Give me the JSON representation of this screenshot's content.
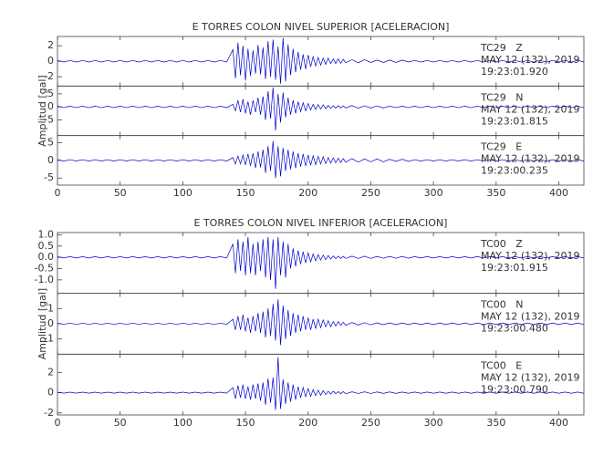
{
  "chart_data": [
    {
      "type": "line",
      "title": "E TORRES COLON NIVEL SUPERIOR [ACELERACION]",
      "ylabel": "Amplitud [gal]",
      "xlim": [
        0,
        420
      ],
      "xticks": [
        0,
        50,
        100,
        150,
        200,
        250,
        300,
        350,
        400
      ],
      "x": [
        0,
        5,
        10,
        15,
        20,
        25,
        30,
        35,
        40,
        45,
        50,
        55,
        60,
        65,
        70,
        75,
        80,
        85,
        90,
        95,
        100,
        105,
        110,
        115,
        120,
        125,
        130,
        135,
        140,
        142,
        144,
        146,
        148,
        150,
        152,
        154,
        156,
        158,
        160,
        162,
        164,
        166,
        168,
        170,
        172,
        174,
        176,
        178,
        180,
        182,
        184,
        186,
        188,
        190,
        192,
        194,
        196,
        198,
        200,
        202,
        204,
        206,
        208,
        210,
        212,
        214,
        216,
        218,
        220,
        222,
        224,
        226,
        228,
        230,
        235,
        240,
        245,
        250,
        255,
        260,
        265,
        270,
        275,
        280,
        285,
        290,
        295,
        300,
        305,
        310,
        315,
        320,
        325,
        330,
        335,
        340,
        345,
        350,
        355,
        360,
        365,
        370,
        375,
        380,
        385,
        390,
        395,
        400,
        405,
        410,
        415,
        420
      ],
      "panels": [
        {
          "label": [
            "TC29   Z",
            "MAY 12 (132), 2019",
            "19:23:01.920"
          ],
          "color": "#0000cc",
          "ylim": [
            -3.2,
            3.2
          ],
          "yticks": [
            2,
            0,
            -2
          ],
          "values": [
            0.1,
            -0.1,
            0.1,
            -0.1,
            0.1,
            -0.1,
            0.1,
            -0.1,
            0.1,
            -0.1,
            0.1,
            -0.1,
            0.1,
            -0.1,
            0.1,
            -0.1,
            0.1,
            -0.1,
            0.1,
            -0.1,
            0.1,
            -0.1,
            0.1,
            -0.1,
            0.1,
            -0.1,
            0.1,
            -0.1,
            1.5,
            -2.2,
            2.4,
            -1.8,
            2.0,
            -2.5,
            1.6,
            -1.9,
            1.4,
            -1.6,
            2.1,
            -1.7,
            1.8,
            -2.3,
            2.6,
            -2.0,
            2.8,
            -2.4,
            1.9,
            -2.9,
            3.0,
            -2.6,
            2.2,
            -1.8,
            1.6,
            -1.4,
            1.2,
            -1.1,
            0.9,
            -1.0,
            0.8,
            -0.7,
            0.6,
            -0.6,
            0.5,
            -0.5,
            0.4,
            -0.4,
            0.4,
            -0.3,
            0.3,
            -0.3,
            0.3,
            -0.25,
            0.25,
            -0.2,
            0.2,
            -0.2,
            0.2,
            -0.15,
            0.15,
            -0.15,
            0.15,
            -0.15,
            0.15,
            -0.1,
            0.1,
            -0.1,
            0.1,
            -0.1,
            0.1,
            -0.1,
            0.1,
            -0.1,
            0.1,
            -0.1,
            0.1,
            -0.1,
            0.1,
            -0.1,
            0.1,
            -0.1,
            0.1,
            -0.1,
            0.1,
            -0.1,
            0.1,
            -0.1,
            0.1,
            -0.1,
            0.1,
            -0.1,
            0.1,
            -0.1
          ]
        },
        {
          "label": [
            "TC29   N",
            "MAY 12 (132), 2019",
            "19:23:01.815"
          ],
          "color": "#0000cc",
          "ylim": [
            -11,
            8
          ],
          "yticks": [
            5,
            0,
            -5
          ],
          "values": [
            0.3,
            -0.3,
            0.3,
            -0.3,
            0.3,
            -0.3,
            0.3,
            -0.3,
            0.3,
            -0.3,
            0.3,
            -0.3,
            0.3,
            -0.3,
            0.3,
            -0.3,
            0.3,
            -0.3,
            0.3,
            -0.3,
            0.3,
            -0.3,
            0.3,
            -0.3,
            0.3,
            -0.3,
            0.3,
            -0.3,
            1.0,
            -1.5,
            2.5,
            -2.0,
            3.0,
            -2.5,
            2.0,
            -3.0,
            2.5,
            -2.0,
            3.5,
            -3.0,
            4.0,
            -5.0,
            6.0,
            -4.5,
            7.5,
            -9.0,
            5.0,
            -6.0,
            5.5,
            -4.0,
            3.5,
            -3.0,
            2.5,
            -2.5,
            2.0,
            -1.8,
            1.6,
            -1.5,
            1.3,
            -1.2,
            1.0,
            -1.0,
            0.9,
            -0.8,
            0.8,
            -0.7,
            0.6,
            -0.6,
            0.5,
            -0.5,
            0.5,
            -0.4,
            0.4,
            -0.4,
            0.5,
            -0.5,
            0.4,
            -0.4,
            0.4,
            -0.4,
            0.3,
            -0.3,
            0.3,
            -0.3,
            0.3,
            -0.3,
            0.3,
            -0.3,
            0.3,
            -0.3,
            0.3,
            -0.3,
            0.3,
            -0.3,
            0.3,
            -0.3,
            0.3,
            -0.3,
            0.3,
            -0.3,
            0.3,
            -0.3,
            0.3,
            -0.3,
            0.3,
            -0.3,
            0.3,
            -0.3,
            0.3,
            -0.3,
            0.3,
            -0.3
          ]
        },
        {
          "label": [
            "TC29   E",
            "MAY 12 (132), 2019",
            "19:23:00.235"
          ],
          "color": "#0000cc",
          "ylim": [
            -7,
            7
          ],
          "yticks": [
            5,
            0,
            -5
          ],
          "values": [
            0.2,
            -0.2,
            0.2,
            -0.2,
            0.2,
            -0.2,
            0.2,
            -0.2,
            0.2,
            -0.2,
            0.2,
            -0.2,
            0.2,
            -0.2,
            0.2,
            -0.2,
            0.2,
            -0.2,
            0.2,
            -0.2,
            0.2,
            -0.2,
            0.2,
            -0.2,
            0.2,
            -0.2,
            0.2,
            -0.2,
            0.8,
            -1.0,
            1.2,
            -1.0,
            1.5,
            -1.3,
            1.8,
            -1.5,
            2.0,
            -2.2,
            2.5,
            -2.0,
            3.0,
            -3.5,
            4.0,
            -3.0,
            5.5,
            -5.0,
            4.0,
            -4.5,
            3.5,
            -3.0,
            3.0,
            -2.5,
            2.5,
            -2.2,
            2.0,
            -1.8,
            1.8,
            -1.6,
            1.5,
            -1.4,
            1.3,
            -1.2,
            1.1,
            -1.0,
            1.0,
            -0.9,
            0.8,
            -0.8,
            0.7,
            -0.7,
            0.6,
            -0.6,
            0.5,
            -0.5,
            0.5,
            -0.5,
            0.4,
            -0.4,
            0.4,
            -0.4,
            0.3,
            -0.3,
            0.3,
            -0.3,
            0.2,
            -0.2,
            0.2,
            -0.2,
            0.2,
            -0.2,
            0.2,
            -0.2,
            0.2,
            -0.2,
            0.2,
            -0.2,
            0.2,
            -0.2,
            0.2,
            -0.2,
            0.2,
            -0.2,
            0.2,
            -0.2,
            0.2,
            -0.2,
            0.2,
            -0.2,
            0.2,
            -0.2,
            0.2,
            -0.2
          ]
        }
      ]
    },
    {
      "type": "line",
      "title": "E TORRES COLON NIVEL INFERIOR [ACELERACION]",
      "ylabel": "Amplitud [gal]",
      "xlim": [
        0,
        420
      ],
      "xticks": [
        0,
        50,
        100,
        150,
        200,
        250,
        300,
        350,
        400
      ],
      "x": [
        0,
        5,
        10,
        15,
        20,
        25,
        30,
        35,
        40,
        45,
        50,
        55,
        60,
        65,
        70,
        75,
        80,
        85,
        90,
        95,
        100,
        105,
        110,
        115,
        120,
        125,
        130,
        135,
        140,
        142,
        144,
        146,
        148,
        150,
        152,
        154,
        156,
        158,
        160,
        162,
        164,
        166,
        168,
        170,
        172,
        174,
        176,
        178,
        180,
        182,
        184,
        186,
        188,
        190,
        192,
        194,
        196,
        198,
        200,
        202,
        204,
        206,
        208,
        210,
        212,
        214,
        216,
        218,
        220,
        222,
        224,
        226,
        228,
        230,
        235,
        240,
        245,
        250,
        255,
        260,
        265,
        270,
        275,
        280,
        285,
        290,
        295,
        300,
        305,
        310,
        315,
        320,
        325,
        330,
        335,
        340,
        345,
        350,
        355,
        360,
        365,
        370,
        375,
        380,
        385,
        390,
        395,
        400,
        405,
        410,
        415,
        420
      ],
      "panels": [
        {
          "label": [
            "TC00   Z",
            "MAY 12 (132), 2019",
            "19:23:01.915"
          ],
          "color": "#0000cc",
          "ylim": [
            -1.6,
            1.1
          ],
          "yticks": [
            {
              "value": 1,
              "label": "1.0"
            },
            0.5,
            {
              "value": 0,
              "label": "0.0"
            },
            -0.5,
            {
              "value": -1,
              "label": "-1.0"
            }
          ],
          "values": [
            0.03,
            -0.03,
            0.03,
            -0.03,
            0.03,
            -0.03,
            0.03,
            -0.03,
            0.03,
            -0.03,
            0.03,
            -0.03,
            0.03,
            -0.03,
            0.03,
            -0.03,
            0.03,
            -0.03,
            0.03,
            -0.03,
            0.03,
            -0.03,
            0.03,
            -0.03,
            0.03,
            -0.03,
            0.03,
            -0.03,
            0.6,
            -0.7,
            0.8,
            -0.6,
            0.7,
            -0.8,
            0.9,
            -0.7,
            0.6,
            -0.8,
            0.7,
            -0.6,
            0.8,
            -0.9,
            0.9,
            -1.0,
            0.8,
            -1.4,
            0.9,
            -0.8,
            0.7,
            -0.9,
            0.6,
            -0.5,
            0.4,
            -0.4,
            0.3,
            -0.3,
            0.25,
            -0.25,
            0.2,
            -0.2,
            0.15,
            -0.15,
            0.12,
            -0.12,
            0.1,
            -0.1,
            0.08,
            -0.08,
            0.06,
            -0.06,
            0.05,
            -0.05,
            0.05,
            -0.05,
            0.05,
            -0.05,
            0.05,
            -0.05,
            0.04,
            -0.04,
            0.04,
            -0.04,
            0.04,
            -0.04,
            0.03,
            -0.03,
            0.03,
            -0.03,
            0.03,
            -0.03,
            0.03,
            -0.03,
            0.03,
            -0.03,
            0.03,
            -0.03,
            0.03,
            -0.03,
            0.03,
            -0.03,
            0.03,
            -0.03,
            0.03,
            -0.03,
            0.03,
            -0.03,
            0.03,
            -0.03,
            0.03,
            -0.03,
            0.03,
            -0.03
          ]
        },
        {
          "label": [
            "TC00   N",
            "MAY 12 (132), 2019",
            "19:23:00.480"
          ],
          "color": "#0000cc",
          "ylim": [
            -2,
            2
          ],
          "yticks": [
            1,
            0,
            -1
          ],
          "values": [
            0.04,
            -0.04,
            0.04,
            -0.04,
            0.04,
            -0.04,
            0.04,
            -0.04,
            0.04,
            -0.04,
            0.04,
            -0.04,
            0.04,
            -0.04,
            0.04,
            -0.04,
            0.04,
            -0.04,
            0.04,
            -0.04,
            0.04,
            -0.04,
            0.04,
            -0.04,
            0.04,
            -0.04,
            0.04,
            -0.04,
            0.3,
            -0.4,
            0.5,
            -0.4,
            0.6,
            -0.5,
            0.4,
            -0.6,
            0.5,
            -0.5,
            0.7,
            -0.6,
            0.8,
            -0.9,
            1.0,
            -0.8,
            1.3,
            -1.1,
            1.6,
            -1.4,
            1.2,
            -1.0,
            0.9,
            -0.8,
            0.7,
            -0.6,
            0.6,
            -0.5,
            0.5,
            -0.4,
            0.4,
            -0.4,
            0.3,
            -0.3,
            0.3,
            -0.25,
            0.25,
            -0.2,
            0.2,
            -0.2,
            0.15,
            -0.15,
            0.15,
            -0.1,
            0.1,
            -0.1,
            0.08,
            -0.08,
            0.07,
            -0.07,
            0.06,
            -0.06,
            0.06,
            -0.06,
            0.05,
            -0.05,
            0.05,
            -0.05,
            0.05,
            -0.05,
            0.05,
            -0.05,
            0.05,
            -0.05,
            0.05,
            -0.05,
            0.05,
            -0.05,
            0.05,
            -0.05,
            0.05,
            -0.05,
            0.05,
            -0.05,
            0.05,
            -0.05,
            0.05,
            -0.05,
            0.05,
            -0.05,
            0.05,
            -0.05,
            0.05,
            -0.05
          ]
        },
        {
          "label": [
            "TC00   E",
            "MAY 12 (132), 2019",
            "19:23:00.790"
          ],
          "color": "#0000cc",
          "ylim": [
            -2.2,
            3.8
          ],
          "yticks": [
            2,
            0,
            -2
          ],
          "values": [
            0.05,
            -0.05,
            0.05,
            -0.05,
            0.05,
            -0.05,
            0.05,
            -0.05,
            0.05,
            -0.05,
            0.05,
            -0.05,
            0.05,
            -0.05,
            0.05,
            -0.05,
            0.05,
            -0.05,
            0.05,
            -0.05,
            0.05,
            -0.05,
            0.05,
            -0.05,
            0.05,
            -0.05,
            0.05,
            -0.05,
            0.5,
            -0.6,
            0.7,
            -0.5,
            0.8,
            -0.6,
            0.6,
            -0.7,
            0.8,
            -0.6,
            0.9,
            -0.8,
            1.0,
            -1.2,
            1.4,
            -1.0,
            1.5,
            -1.7,
            3.5,
            -1.6,
            1.3,
            -1.1,
            1.0,
            -0.9,
            0.8,
            -0.7,
            0.6,
            -0.5,
            0.5,
            -0.4,
            0.4,
            -0.35,
            0.3,
            -0.3,
            0.25,
            -0.25,
            0.2,
            -0.2,
            0.15,
            -0.15,
            0.15,
            -0.1,
            0.1,
            -0.1,
            0.1,
            -0.1,
            0.08,
            -0.08,
            0.08,
            -0.08,
            0.07,
            -0.07,
            0.07,
            -0.07,
            0.06,
            -0.06,
            0.06,
            -0.06,
            0.06,
            -0.06,
            0.06,
            -0.06,
            0.06,
            -0.06,
            0.06,
            -0.06,
            0.06,
            -0.06,
            0.06,
            -0.06,
            0.06,
            -0.06,
            0.06,
            -0.06,
            0.06,
            -0.06,
            0.06,
            -0.06,
            0.06,
            -0.06,
            0.06,
            -0.06,
            0.06,
            -0.06
          ]
        }
      ]
    }
  ]
}
